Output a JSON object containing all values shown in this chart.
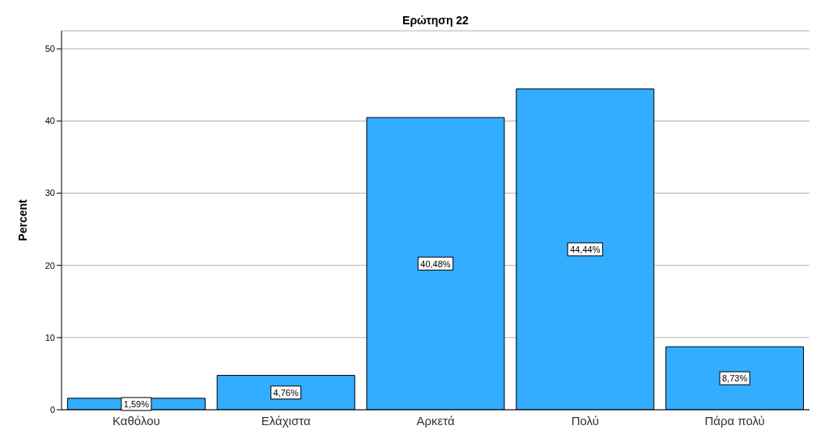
{
  "chart_data": {
    "type": "bar",
    "title": "Ερώτηση 22",
    "ylabel": "Percent",
    "categories": [
      "Καθόλου",
      "Ελάχιστα",
      "Αρκετά",
      "Πολύ",
      "Πάρα πολύ"
    ],
    "values": [
      1.59,
      4.76,
      40.48,
      44.44,
      8.73
    ],
    "value_labels": [
      "1,59%",
      "4,76%",
      "40,48%",
      "44,44%",
      "8,73%"
    ],
    "color": "#33adff",
    "ylim": [
      0,
      52.5
    ],
    "yticks": [
      0,
      10,
      20,
      30,
      40,
      50
    ],
    "grid": "y"
  }
}
